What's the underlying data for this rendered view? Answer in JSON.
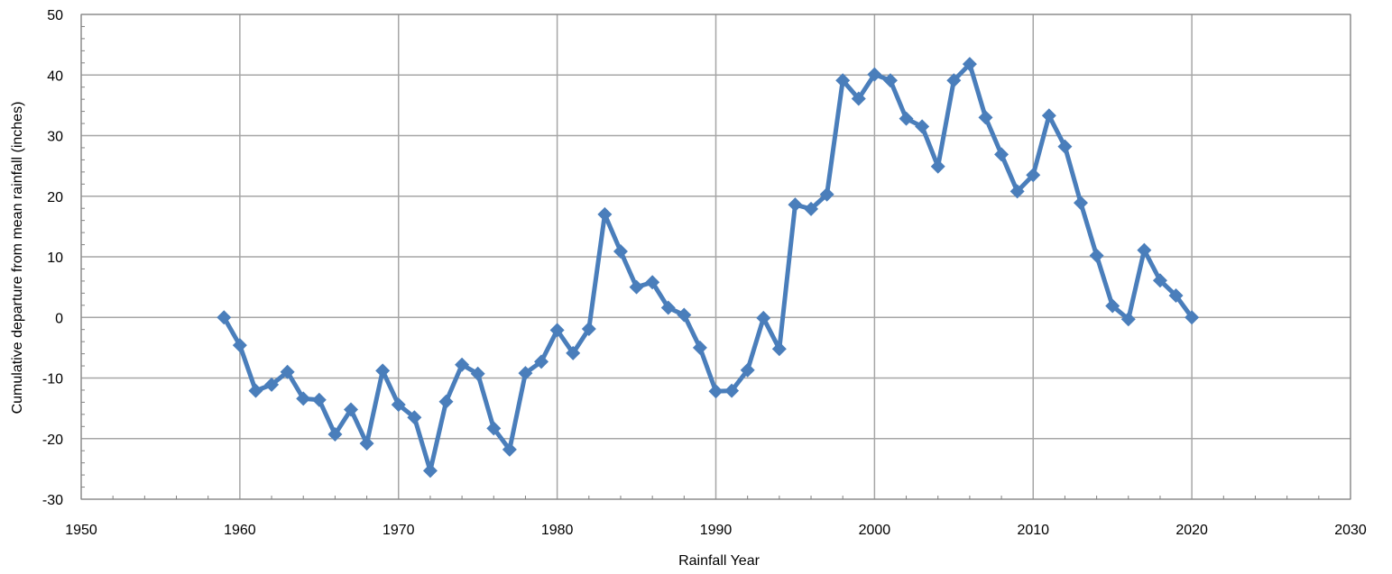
{
  "chart_data": {
    "type": "line",
    "xlabel": "Rainfall Year",
    "ylabel": "Cumulative departure from mean rainfall (inches)",
    "xlim": [
      1950,
      2030
    ],
    "ylim": [
      -30,
      50
    ],
    "x_ticks": [
      1950,
      1960,
      1970,
      1980,
      1990,
      2000,
      2010,
      2020,
      2030
    ],
    "y_ticks": [
      -30,
      -20,
      -10,
      0,
      10,
      20,
      30,
      40,
      50
    ],
    "x_tick_labels": [
      "1950",
      "1960",
      "1970",
      "1980",
      "1990",
      "2000",
      "2010",
      "2020",
      "2030"
    ],
    "y_tick_labels": [
      "-30",
      "-20",
      "-10",
      "0",
      "10",
      "20",
      "30",
      "40",
      "50"
    ],
    "grid": true,
    "legend": "none",
    "marker": "diamond",
    "series_color": "#4a7ebb",
    "series": [
      {
        "x": [
          1959,
          1960,
          1961,
          1962,
          1963,
          1964,
          1965,
          1966,
          1967,
          1968,
          1969,
          1970,
          1971,
          1972,
          1973,
          1974,
          1975,
          1976,
          1977,
          1978,
          1979,
          1980,
          1981,
          1982,
          1983,
          1984,
          1985,
          1986,
          1987,
          1988,
          1989,
          1990,
          1991,
          1992,
          1993,
          1994,
          1995,
          1996,
          1997,
          1998,
          1999,
          2000,
          2001,
          2002,
          2003,
          2004,
          2005,
          2006,
          2007,
          2008,
          2009,
          2010,
          2011,
          2012,
          2013,
          2014,
          2015,
          2016,
          2017,
          2018,
          2019,
          2020
        ],
        "y": [
          0,
          -4.6,
          -12.1,
          -11.1,
          -9.0,
          -13.4,
          -13.6,
          -19.3,
          -15.2,
          -20.8,
          -8.8,
          -14.4,
          -16.5,
          -25.3,
          -13.9,
          -7.8,
          -9.3,
          -18.3,
          -21.8,
          -9.2,
          -7.3,
          -2.1,
          -5.9,
          -1.9,
          17.0,
          10.9,
          5.0,
          5.8,
          1.6,
          0.4,
          -5.0,
          -12.2,
          -12.1,
          -8.7,
          -0.1,
          -5.2,
          18.6,
          17.9,
          20.3,
          39.1,
          36.1,
          40.1,
          39.1,
          32.8,
          31.5,
          24.9,
          39.1,
          41.8,
          33.0,
          26.9,
          20.8,
          23.5,
          33.3,
          28.2,
          18.9,
          10.2,
          1.9,
          -0.3,
          11.1,
          6.1,
          3.6,
          0.0
        ]
      }
    ]
  }
}
